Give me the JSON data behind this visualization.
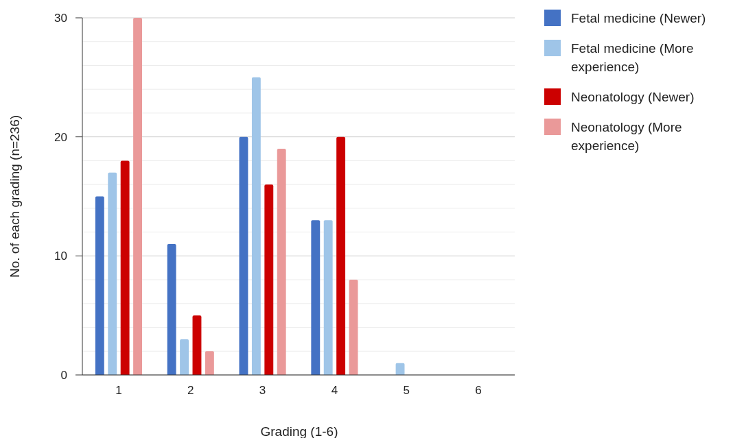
{
  "chart_data": {
    "type": "bar",
    "xlabel": "Grading (1-6)",
    "ylabel": "No. of each grading (n=236)",
    "categories": [
      "1",
      "2",
      "3",
      "4",
      "5",
      "6"
    ],
    "series": [
      {
        "name": "Fetal medicine (Newer)",
        "color": "#4472c4",
        "values": [
          15,
          11,
          20,
          13,
          0,
          0
        ]
      },
      {
        "name": "Fetal medicine (More experience)",
        "color": "#9fc5e8",
        "values": [
          17,
          3,
          25,
          13,
          1,
          0
        ]
      },
      {
        "name": "Neonatology (Newer)",
        "color": "#cc0000",
        "values": [
          18,
          5,
          16,
          20,
          0,
          0
        ]
      },
      {
        "name": "Neonatology (More experience)",
        "color": "#ea9999",
        "values": [
          30,
          2,
          19,
          8,
          0,
          0
        ]
      }
    ],
    "ylim": [
      0,
      30
    ],
    "yticks": [
      0,
      {
        "value": 2,
        "label": null
      },
      {
        "value": 4,
        "label": null
      },
      {
        "value": 6,
        "label": null
      },
      {
        "value": 8,
        "label": null
      },
      10,
      {
        "value": 12,
        "label": null
      },
      {
        "value": 14,
        "label": null
      },
      {
        "value": 16,
        "label": null
      },
      {
        "value": 18,
        "label": null
      },
      20,
      {
        "value": 22,
        "label": null
      },
      {
        "value": 24,
        "label": null
      },
      {
        "value": 26,
        "label": null
      },
      {
        "value": 28,
        "label": null
      },
      30
    ],
    "grid": true,
    "legend": "top right"
  }
}
